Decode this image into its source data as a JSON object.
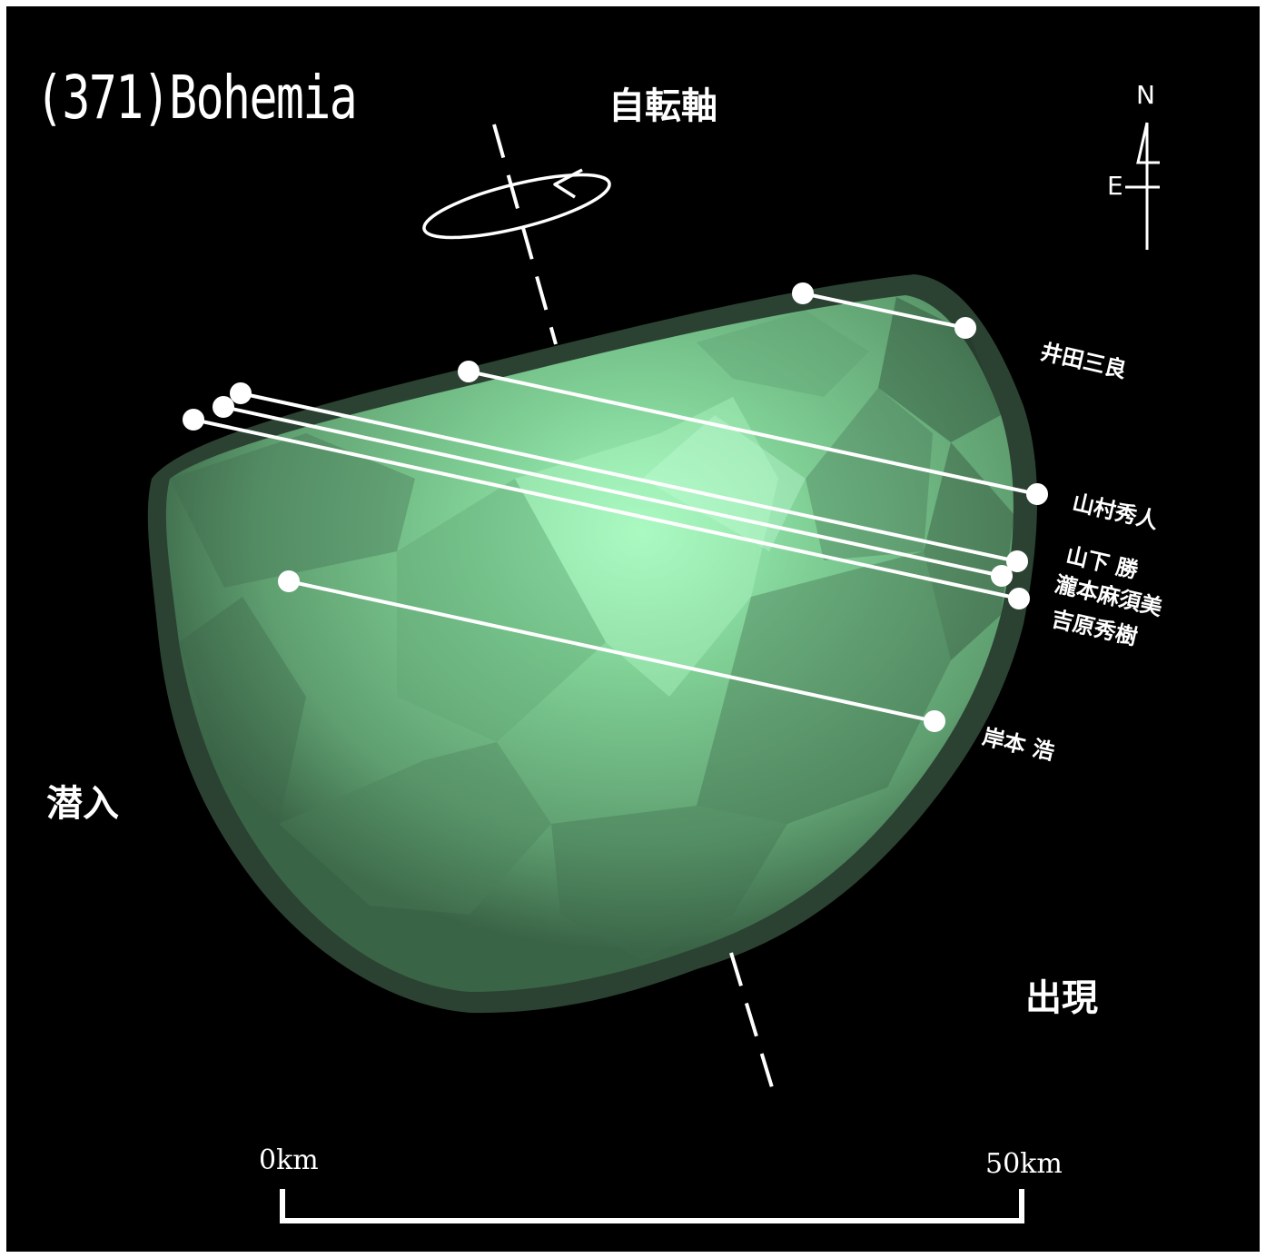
{
  "title": "(371)Bohemia",
  "rotation_axis_label": "自転軸",
  "ingress_label": "潜入",
  "egress_label": "出現",
  "compass": {
    "north": "N",
    "east": "E"
  },
  "scale_bar": {
    "start_label": "0km",
    "end_label": "50km"
  },
  "observers": [
    {
      "name": "井田三良"
    },
    {
      "name": "山村秀人"
    },
    {
      "name": "山下 勝"
    },
    {
      "name": "瀧本麻須美"
    },
    {
      "name": "吉原秀樹"
    },
    {
      "name": "岸本 浩"
    }
  ],
  "colors": {
    "background": "#000000",
    "asteroid_light": "#98f0b4",
    "asteroid_mid": "#6db57f",
    "asteroid_dark": "#2e4a36",
    "chords": "#ffffff"
  }
}
